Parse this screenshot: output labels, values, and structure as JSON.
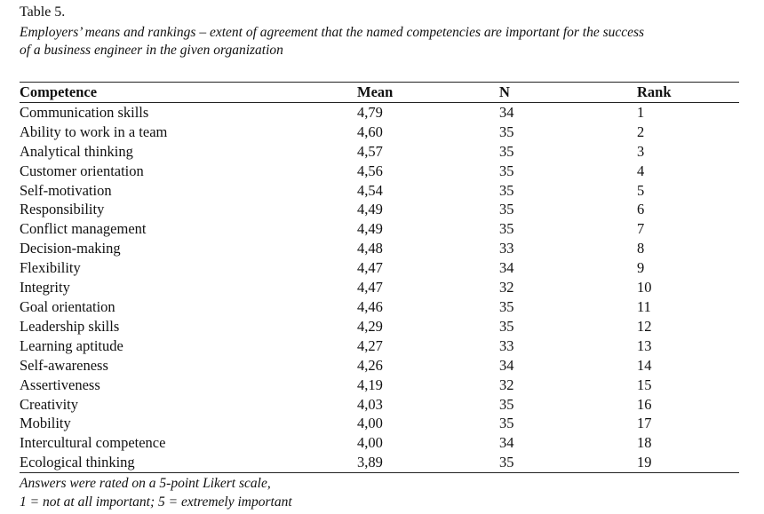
{
  "table_number": "Table 5.",
  "caption_line1": "Employers’ means and rankings – extent of agreement that the named competencies are important for the success",
  "caption_line2": "of a business engineer in the given organization",
  "headers": {
    "competence": "Competence",
    "mean": "Mean",
    "n": "N",
    "rank": "Rank"
  },
  "rows": [
    {
      "competence": "Communication skills",
      "mean": "4,79",
      "n": "34",
      "rank": "1"
    },
    {
      "competence": "Ability to work in a team",
      "mean": "4,60",
      "n": "35",
      "rank": "2"
    },
    {
      "competence": "Analytical thinking",
      "mean": "4,57",
      "n": "35",
      "rank": "3"
    },
    {
      "competence": "Customer orientation",
      "mean": "4,56",
      "n": "35",
      "rank": "4"
    },
    {
      "competence": "Self-motivation",
      "mean": "4,54",
      "n": "35",
      "rank": "5"
    },
    {
      "competence": "Responsibility",
      "mean": "4,49",
      "n": "35",
      "rank": "6"
    },
    {
      "competence": "Conflict management",
      "mean": "4,49",
      "n": "35",
      "rank": "7"
    },
    {
      "competence": "Decision-making",
      "mean": "4,48",
      "n": "33",
      "rank": "8"
    },
    {
      "competence": "Flexibility",
      "mean": "4,47",
      "n": "34",
      "rank": "9"
    },
    {
      "competence": "Integrity",
      "mean": "4,47",
      "n": "32",
      "rank": "10"
    },
    {
      "competence": "Goal orientation",
      "mean": "4,46",
      "n": "35",
      "rank": "11"
    },
    {
      "competence": "Leadership skills",
      "mean": "4,29",
      "n": "35",
      "rank": "12"
    },
    {
      "competence": "Learning aptitude",
      "mean": "4,27",
      "n": "33",
      "rank": "13"
    },
    {
      "competence": "Self-awareness",
      "mean": "4,26",
      "n": "34",
      "rank": "14"
    },
    {
      "competence": "Assertiveness",
      "mean": "4,19",
      "n": "32",
      "rank": "15"
    },
    {
      "competence": "Creativity",
      "mean": "4,03",
      "n": "35",
      "rank": "16"
    },
    {
      "competence": "Mobility",
      "mean": "4,00",
      "n": "35",
      "rank": "17"
    },
    {
      "competence": "Intercultural competence",
      "mean": "4,00",
      "n": "34",
      "rank": "18"
    },
    {
      "competence": "Ecological thinking",
      "mean": "3,89",
      "n": "35",
      "rank": "19"
    }
  ],
  "note_line1": "Answers were rated on a 5-point Likert scale,",
  "note_line2": "1 = not at all important; 5 = extremely important"
}
